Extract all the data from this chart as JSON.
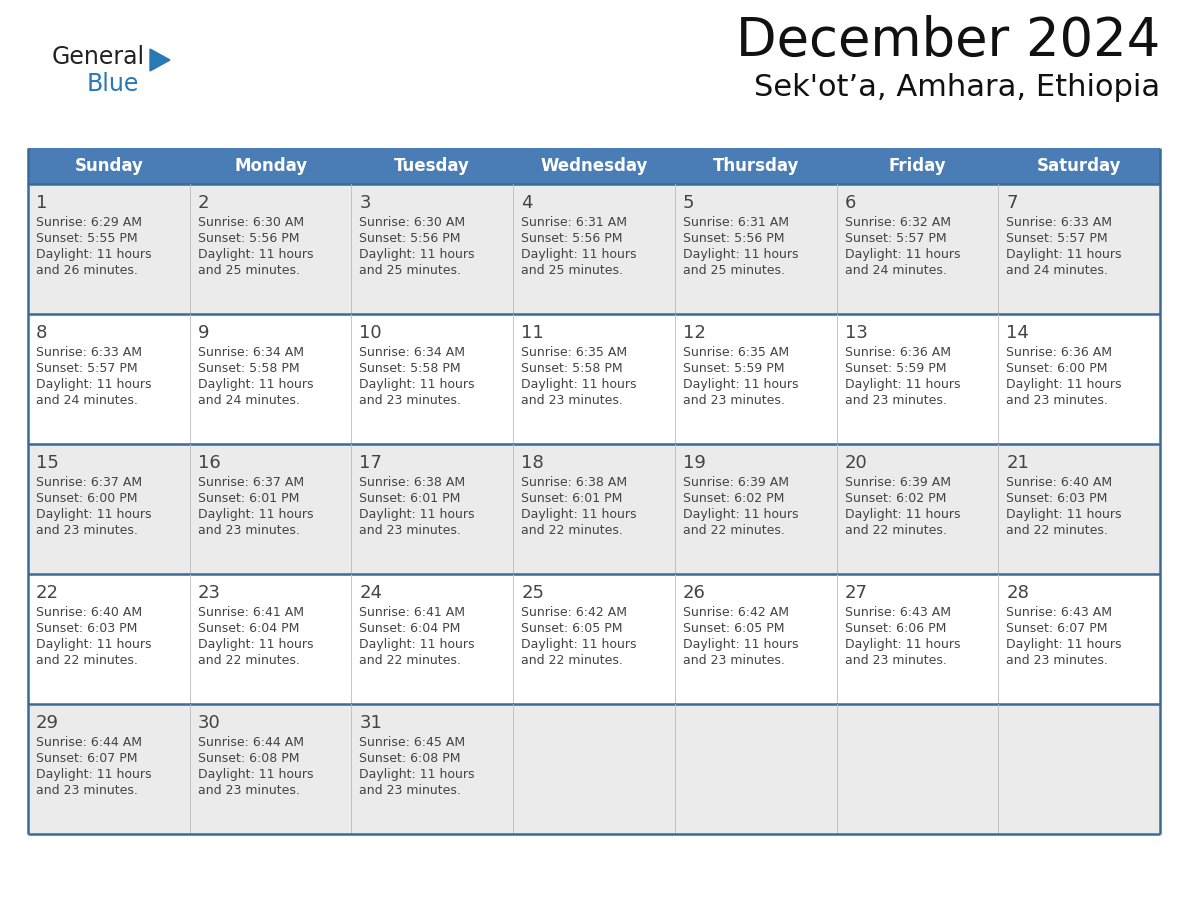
{
  "title": "December 2024",
  "subtitle": "Sek'ot’a, Amhara, Ethiopia",
  "header_bg_color": "#4A7DB5",
  "header_text_color": "#FFFFFF",
  "row_bg_odd": "#EBEBEB",
  "row_bg_even": "#FFFFFF",
  "text_color": "#444444",
  "border_color": "#3A6A9A",
  "divider_color": "#BBBBBB",
  "day_headers": [
    "Sunday",
    "Monday",
    "Tuesday",
    "Wednesday",
    "Thursday",
    "Friday",
    "Saturday"
  ],
  "weeks": [
    [
      {
        "day": "1",
        "sunrise": "6:29 AM",
        "sunset": "5:55 PM",
        "dl1": "Daylight: 11 hours",
        "dl2": "and 26 minutes."
      },
      {
        "day": "2",
        "sunrise": "6:30 AM",
        "sunset": "5:56 PM",
        "dl1": "Daylight: 11 hours",
        "dl2": "and 25 minutes."
      },
      {
        "day": "3",
        "sunrise": "6:30 AM",
        "sunset": "5:56 PM",
        "dl1": "Daylight: 11 hours",
        "dl2": "and 25 minutes."
      },
      {
        "day": "4",
        "sunrise": "6:31 AM",
        "sunset": "5:56 PM",
        "dl1": "Daylight: 11 hours",
        "dl2": "and 25 minutes."
      },
      {
        "day": "5",
        "sunrise": "6:31 AM",
        "sunset": "5:56 PM",
        "dl1": "Daylight: 11 hours",
        "dl2": "and 25 minutes."
      },
      {
        "day": "6",
        "sunrise": "6:32 AM",
        "sunset": "5:57 PM",
        "dl1": "Daylight: 11 hours",
        "dl2": "and 24 minutes."
      },
      {
        "day": "7",
        "sunrise": "6:33 AM",
        "sunset": "5:57 PM",
        "dl1": "Daylight: 11 hours",
        "dl2": "and 24 minutes."
      }
    ],
    [
      {
        "day": "8",
        "sunrise": "6:33 AM",
        "sunset": "5:57 PM",
        "dl1": "Daylight: 11 hours",
        "dl2": "and 24 minutes."
      },
      {
        "day": "9",
        "sunrise": "6:34 AM",
        "sunset": "5:58 PM",
        "dl1": "Daylight: 11 hours",
        "dl2": "and 24 minutes."
      },
      {
        "day": "10",
        "sunrise": "6:34 AM",
        "sunset": "5:58 PM",
        "dl1": "Daylight: 11 hours",
        "dl2": "and 23 minutes."
      },
      {
        "day": "11",
        "sunrise": "6:35 AM",
        "sunset": "5:58 PM",
        "dl1": "Daylight: 11 hours",
        "dl2": "and 23 minutes."
      },
      {
        "day": "12",
        "sunrise": "6:35 AM",
        "sunset": "5:59 PM",
        "dl1": "Daylight: 11 hours",
        "dl2": "and 23 minutes."
      },
      {
        "day": "13",
        "sunrise": "6:36 AM",
        "sunset": "5:59 PM",
        "dl1": "Daylight: 11 hours",
        "dl2": "and 23 minutes."
      },
      {
        "day": "14",
        "sunrise": "6:36 AM",
        "sunset": "6:00 PM",
        "dl1": "Daylight: 11 hours",
        "dl2": "and 23 minutes."
      }
    ],
    [
      {
        "day": "15",
        "sunrise": "6:37 AM",
        "sunset": "6:00 PM",
        "dl1": "Daylight: 11 hours",
        "dl2": "and 23 minutes."
      },
      {
        "day": "16",
        "sunrise": "6:37 AM",
        "sunset": "6:01 PM",
        "dl1": "Daylight: 11 hours",
        "dl2": "and 23 minutes."
      },
      {
        "day": "17",
        "sunrise": "6:38 AM",
        "sunset": "6:01 PM",
        "dl1": "Daylight: 11 hours",
        "dl2": "and 23 minutes."
      },
      {
        "day": "18",
        "sunrise": "6:38 AM",
        "sunset": "6:01 PM",
        "dl1": "Daylight: 11 hours",
        "dl2": "and 22 minutes."
      },
      {
        "day": "19",
        "sunrise": "6:39 AM",
        "sunset": "6:02 PM",
        "dl1": "Daylight: 11 hours",
        "dl2": "and 22 minutes."
      },
      {
        "day": "20",
        "sunrise": "6:39 AM",
        "sunset": "6:02 PM",
        "dl1": "Daylight: 11 hours",
        "dl2": "and 22 minutes."
      },
      {
        "day": "21",
        "sunrise": "6:40 AM",
        "sunset": "6:03 PM",
        "dl1": "Daylight: 11 hours",
        "dl2": "and 22 minutes."
      }
    ],
    [
      {
        "day": "22",
        "sunrise": "6:40 AM",
        "sunset": "6:03 PM",
        "dl1": "Daylight: 11 hours",
        "dl2": "and 22 minutes."
      },
      {
        "day": "23",
        "sunrise": "6:41 AM",
        "sunset": "6:04 PM",
        "dl1": "Daylight: 11 hours",
        "dl2": "and 22 minutes."
      },
      {
        "day": "24",
        "sunrise": "6:41 AM",
        "sunset": "6:04 PM",
        "dl1": "Daylight: 11 hours",
        "dl2": "and 22 minutes."
      },
      {
        "day": "25",
        "sunrise": "6:42 AM",
        "sunset": "6:05 PM",
        "dl1": "Daylight: 11 hours",
        "dl2": "and 22 minutes."
      },
      {
        "day": "26",
        "sunrise": "6:42 AM",
        "sunset": "6:05 PM",
        "dl1": "Daylight: 11 hours",
        "dl2": "and 23 minutes."
      },
      {
        "day": "27",
        "sunrise": "6:43 AM",
        "sunset": "6:06 PM",
        "dl1": "Daylight: 11 hours",
        "dl2": "and 23 minutes."
      },
      {
        "day": "28",
        "sunrise": "6:43 AM",
        "sunset": "6:07 PM",
        "dl1": "Daylight: 11 hours",
        "dl2": "and 23 minutes."
      }
    ],
    [
      {
        "day": "29",
        "sunrise": "6:44 AM",
        "sunset": "6:07 PM",
        "dl1": "Daylight: 11 hours",
        "dl2": "and 23 minutes."
      },
      {
        "day": "30",
        "sunrise": "6:44 AM",
        "sunset": "6:08 PM",
        "dl1": "Daylight: 11 hours",
        "dl2": "and 23 minutes."
      },
      {
        "day": "31",
        "sunrise": "6:45 AM",
        "sunset": "6:08 PM",
        "dl1": "Daylight: 11 hours",
        "dl2": "and 23 minutes."
      },
      null,
      null,
      null,
      null
    ]
  ],
  "logo_general_color": "#222222",
  "logo_blue_color": "#2979B5",
  "logo_triangle_color": "#2979B5",
  "fig_width": 11.88,
  "fig_height": 9.18,
  "fig_dpi": 100
}
